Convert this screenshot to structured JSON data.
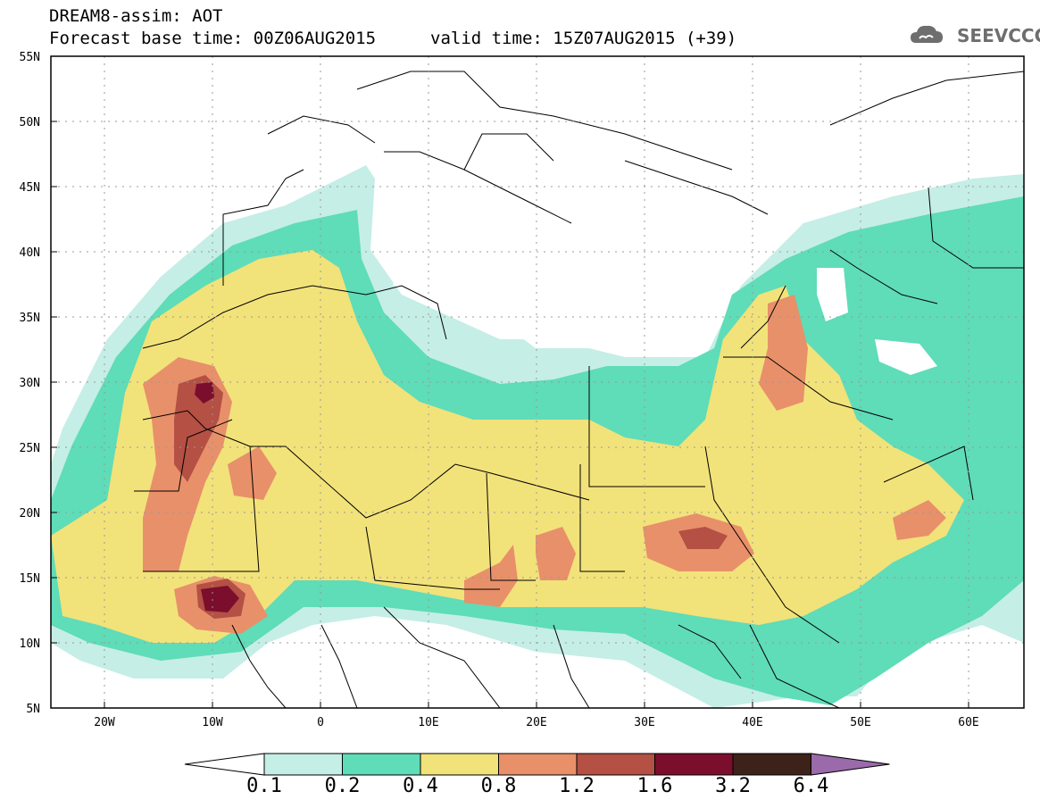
{
  "header": {
    "title_line1": "DREAM8-assim: AOT",
    "title_line2": "Forecast base time: 00Z06AUG2015",
    "valid_time": "valid time: 15Z07AUG2015 (+39)",
    "logo_text": "SEEVCCC"
  },
  "map": {
    "y_ticks": [
      "55N",
      "50N",
      "45N",
      "40N",
      "35N",
      "30N",
      "25N",
      "20N",
      "15N",
      "10N",
      "5N"
    ],
    "x_ticks": [
      "20W",
      "10W",
      "0",
      "10E",
      "20E",
      "30E",
      "40E",
      "50E",
      "60E"
    ],
    "lat_range": [
      5,
      55
    ],
    "lon_range": [
      -25,
      65
    ]
  },
  "legend": {
    "labels": [
      "0.1",
      "0.2",
      "0.4",
      "0.8",
      "1.2",
      "1.6",
      "3.2",
      "6.4"
    ],
    "colors": [
      "#ffffff",
      "#c5eee6",
      "#5fdcb8",
      "#f2e27a",
      "#e8906a",
      "#b45044",
      "#7a0e2c",
      "#3c2218",
      "#9a6aaa"
    ]
  }
}
